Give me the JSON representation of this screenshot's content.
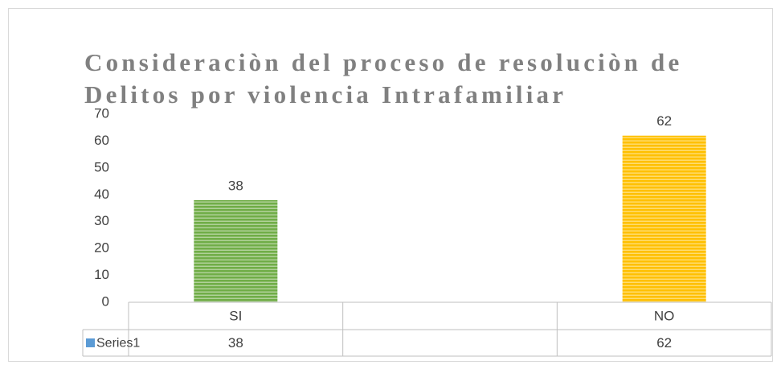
{
  "chart_data": {
    "type": "bar",
    "title": "Consideraciòn del proceso de resoluciòn de Delitos por violencia Intrafamiliar",
    "categories": [
      "SI",
      null,
      "NO"
    ],
    "series": [
      {
        "name": "Series1",
        "color": "#5b9bd5",
        "values": [
          38,
          null,
          62
        ]
      }
    ],
    "bar_colors": [
      "#70ad47",
      null,
      "#ffc000"
    ],
    "ylim": [
      0,
      70
    ],
    "yticks": [
      0,
      10,
      20,
      30,
      40,
      50,
      60,
      70
    ],
    "grid": false,
    "data_table": true
  }
}
